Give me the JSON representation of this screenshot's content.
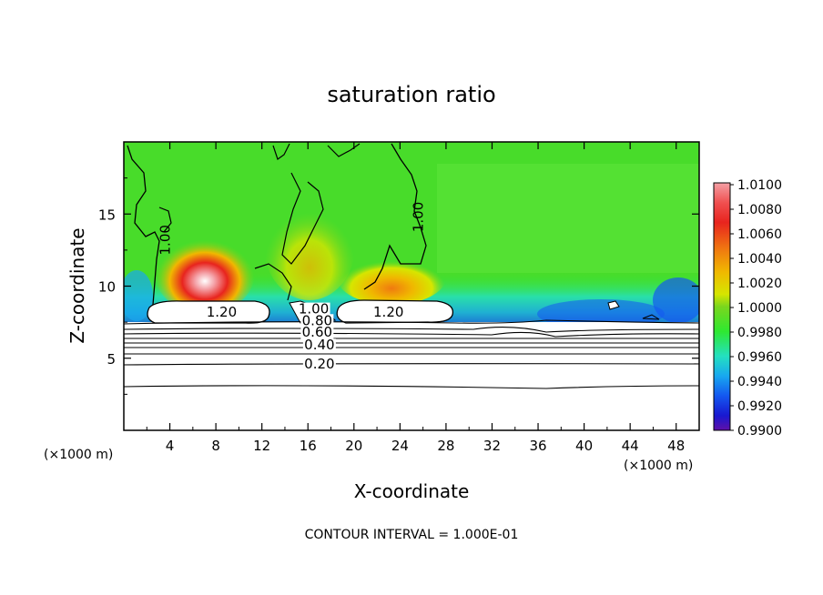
{
  "chart_data": {
    "type": "heatmap",
    "title": "saturation ratio",
    "xlabel": "X-coordinate",
    "ylabel": "Z-coordinate",
    "x_unit": "(×1000 m)",
    "x_unit_right": "(×1000 m)",
    "xlim": [
      0,
      50
    ],
    "ylim": [
      0,
      20
    ],
    "xticks": [
      "4",
      "8",
      "12",
      "16",
      "20",
      "24",
      "28",
      "32",
      "36",
      "40",
      "44",
      "48"
    ],
    "yticks": [
      "5",
      "10",
      "15"
    ],
    "footer": "CONTOUR INTERVAL = 1.000E-01",
    "colorbar": {
      "labels": [
        "1.0100",
        "1.0080",
        "1.0060",
        "1.0040",
        "1.0020",
        "1.0000",
        "0.9980",
        "0.9960",
        "0.9940",
        "0.9920",
        "0.9900"
      ],
      "colors": [
        "#f4a0a6",
        "#f05050",
        "#e8241e",
        "#f07a10",
        "#f0b800",
        "#d6e600",
        "#7ad61e",
        "#2ee830",
        "#24e0c0",
        "#18a8f0",
        "#1458f0",
        "#1818d0",
        "#6010a8"
      ],
      "min": 0.99,
      "max": 1.01
    },
    "contour_labels": [
      {
        "text": "1.00",
        "x": 4.0,
        "z": 13.2,
        "rot": -90
      },
      {
        "text": "1.00",
        "x": 26.0,
        "z": 14.8,
        "rot": -90
      },
      {
        "text": "1.20",
        "x": 8.5,
        "z": 7.9,
        "rot": 0
      },
      {
        "text": "1.20",
        "x": 23.0,
        "z": 7.9,
        "rot": 0
      },
      {
        "text": "1.00",
        "x": 16.5,
        "z": 8.1,
        "rot": 0
      },
      {
        "text": "0.80",
        "x": 16.8,
        "z": 7.3,
        "rot": 0
      },
      {
        "text": "0.60",
        "x": 16.8,
        "z": 6.5,
        "rot": 0
      },
      {
        "text": "0.40",
        "x": 17.0,
        "z": 5.6,
        "rot": 0
      },
      {
        "text": "0.20",
        "x": 17.0,
        "z": 4.3,
        "rot": 0
      }
    ]
  }
}
